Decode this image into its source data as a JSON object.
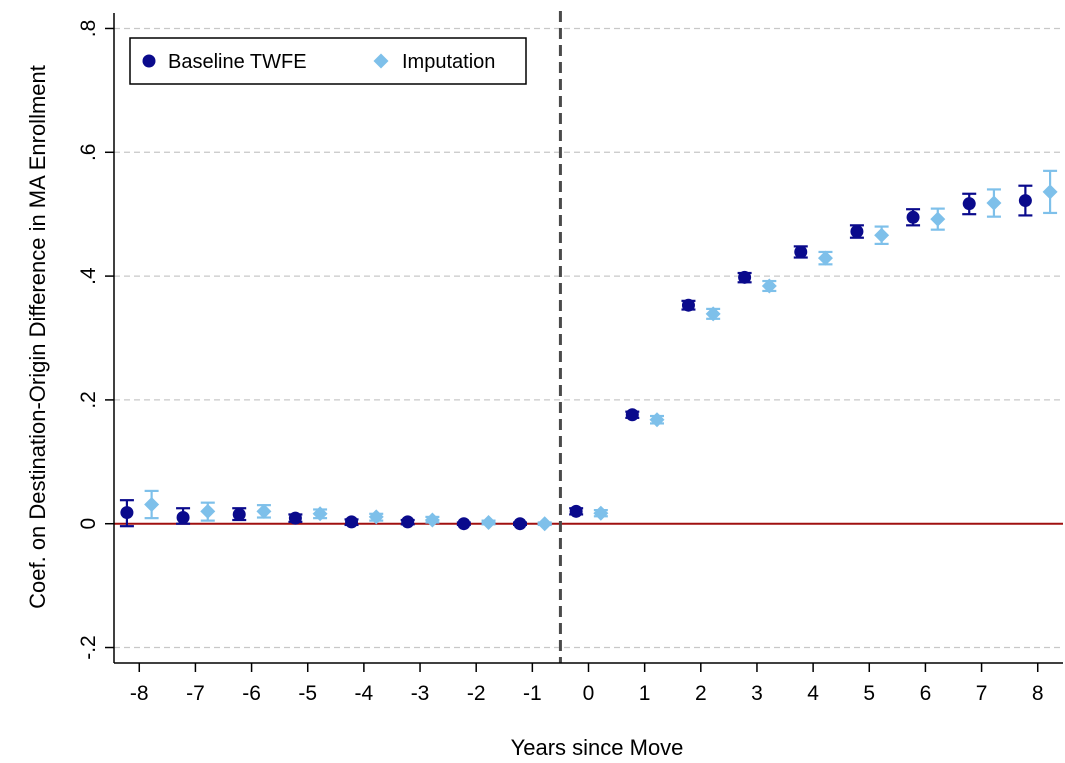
{
  "chart_data": {
    "type": "scatter",
    "xlabel": "Years since Move",
    "ylabel": "Coef. on Destination-Origin Difference in MA Enrollment",
    "xlim": [
      -8.45,
      8.45
    ],
    "ylim": [
      -0.225,
      0.825
    ],
    "x_ticks": [
      -8,
      -7,
      -6,
      -5,
      -4,
      -3,
      -2,
      -1,
      0,
      1,
      2,
      3,
      4,
      5,
      6,
      7,
      8
    ],
    "x_tick_labels": [
      "-8",
      "-7",
      "-6",
      "-5",
      "-4",
      "-3",
      "-2",
      "-1",
      "0",
      "1",
      "2",
      "3",
      "4",
      "5",
      "6",
      "7",
      "8"
    ],
    "y_ticks": [
      -0.2,
      0,
      0.2,
      0.4,
      0.6,
      0.8
    ],
    "y_tick_labels": [
      "-.2",
      "0",
      ".2",
      ".4",
      ".6",
      ".8"
    ],
    "grid": "horizontal dashed",
    "reference_lines": {
      "horizontal_y": 0,
      "horizontal_color": "#a01010",
      "vertical_x": -0.5,
      "vertical_style": "dashed"
    },
    "legend": {
      "placement": "top-left",
      "entries": [
        "Baseline TWFE",
        "Imputation"
      ]
    },
    "series": [
      {
        "name": "Baseline TWFE",
        "marker": "circle",
        "color": "#0a0a8c",
        "x": [
          -8,
          -7,
          -6,
          -5,
          -4,
          -3,
          -2,
          -1,
          0,
          1,
          2,
          3,
          4,
          5,
          6,
          7,
          8
        ],
        "y": [
          0.018,
          0.01,
          0.015,
          0.009,
          0.003,
          0.003,
          0.0,
          0.0,
          0.02,
          0.176,
          0.353,
          0.398,
          0.439,
          0.472,
          0.495,
          0.517,
          0.522
        ],
        "ci_low": [
          -0.004,
          0.0,
          0.006,
          0.003,
          -0.002,
          -0.001,
          -0.002,
          -0.002,
          0.015,
          0.171,
          0.346,
          0.39,
          0.43,
          0.462,
          0.482,
          0.5,
          0.498
        ],
        "ci_high": [
          0.038,
          0.025,
          0.025,
          0.015,
          0.007,
          0.006,
          0.002,
          0.002,
          0.025,
          0.181,
          0.36,
          0.405,
          0.448,
          0.482,
          0.508,
          0.533,
          0.546
        ]
      },
      {
        "name": "Imputation",
        "marker": "diamond",
        "color": "#7ec0ea",
        "x": [
          -8,
          -7,
          -6,
          -5,
          -4,
          -3,
          -2,
          -1,
          0,
          1,
          2,
          3,
          4,
          5,
          6,
          7,
          8
        ],
        "y": [
          0.031,
          0.02,
          0.02,
          0.016,
          0.011,
          0.006,
          0.002,
          0.0,
          0.017,
          0.168,
          0.339,
          0.384,
          0.429,
          0.466,
          0.492,
          0.518,
          0.536
        ],
        "ci_low": [
          0.009,
          0.005,
          0.01,
          0.009,
          0.005,
          0.002,
          -0.001,
          -0.002,
          0.012,
          0.162,
          0.331,
          0.376,
          0.419,
          0.452,
          0.475,
          0.496,
          0.502
        ],
        "ci_high": [
          0.053,
          0.034,
          0.03,
          0.023,
          0.016,
          0.011,
          0.005,
          0.002,
          0.022,
          0.174,
          0.347,
          0.392,
          0.439,
          0.48,
          0.509,
          0.54,
          0.57
        ]
      }
    ]
  }
}
